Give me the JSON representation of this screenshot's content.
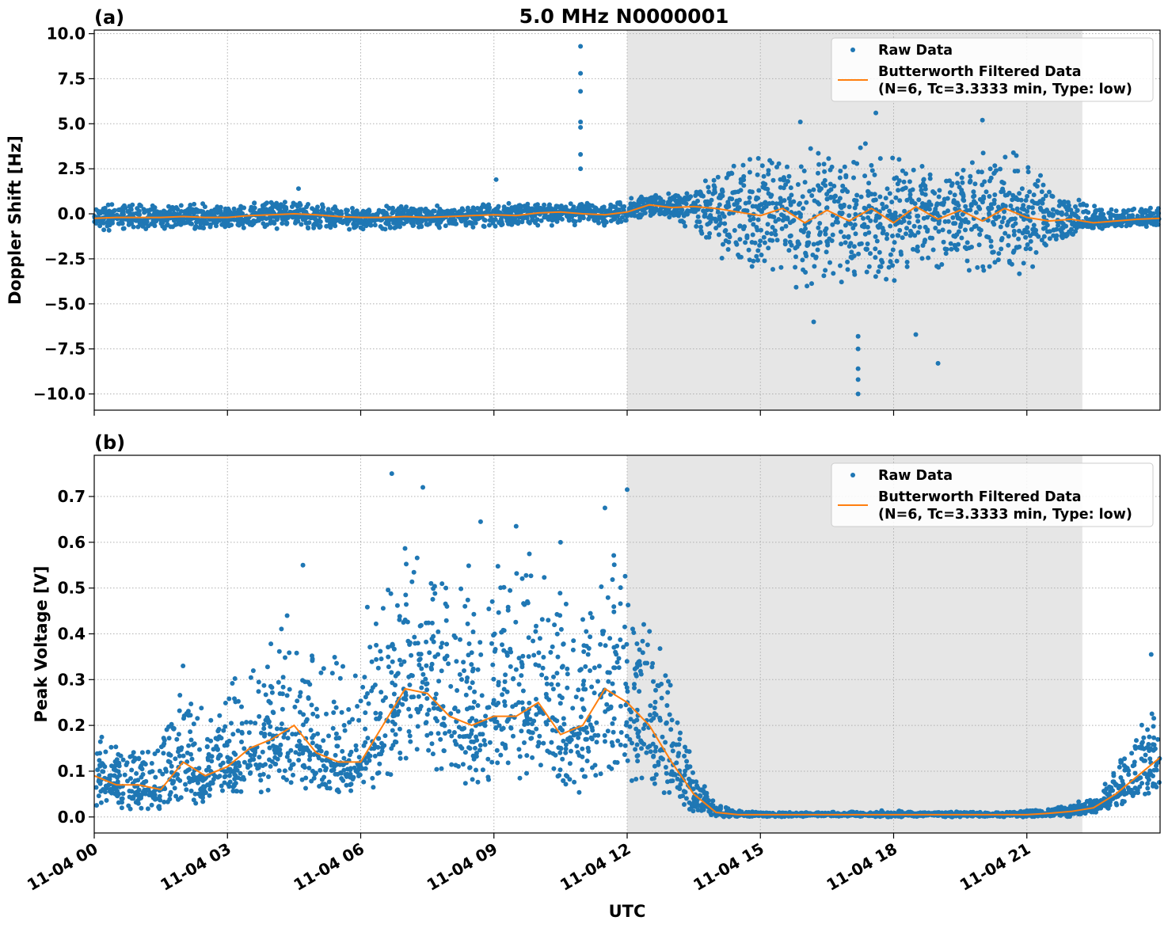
{
  "title": "5.0 MHz N0000001",
  "chart_data": [
    {
      "type": "scatter",
      "panel_label": "(a)",
      "ylabel": "Doppler Shift [Hz]",
      "xlabel": "",
      "xlim": [
        0,
        24
      ],
      "ylim": [
        -10.9,
        10.2
      ],
      "yticks": [
        "10.0",
        "7.5",
        "5.0",
        "2.5",
        "0.0",
        "−2.5",
        "−5.0",
        "−7.5",
        "−10.0"
      ],
      "ytick_values": [
        10,
        7.5,
        5,
        2.5,
        0,
        -2.5,
        -5,
        -7.5,
        -10
      ],
      "grid": true,
      "legend": {
        "placement": "top-right",
        "raw": "Raw Data",
        "filtered_line1": "Butterworth Filtered Data",
        "filtered_line2": "(N=6, Tc=3.3333 min, Type: low)"
      },
      "shaded_region_hours": [
        12,
        22.25
      ],
      "x_hours_step": 0.5,
      "filtered": [
        -0.25,
        -0.2,
        -0.2,
        -0.2,
        -0.15,
        -0.2,
        -0.2,
        -0.1,
        -0.05,
        0.0,
        -0.05,
        -0.15,
        -0.2,
        -0.2,
        -0.15,
        -0.2,
        -0.15,
        -0.1,
        -0.05,
        -0.1,
        0.05,
        0.1,
        0.0,
        -0.05,
        0.1,
        0.5,
        0.35,
        0.4,
        0.3,
        0.1,
        -0.1,
        0.3,
        -0.5,
        0.2,
        -0.4,
        0.3,
        -0.5,
        0.4,
        -0.3,
        0.2,
        -0.4,
        0.3,
        -0.2,
        -0.4,
        -0.3,
        -0.5,
        -0.4,
        -0.3,
        -0.25
      ],
      "raw_min": [
        -1.2,
        -0.9,
        -0.9,
        -0.9,
        -0.9,
        -0.9,
        -0.8,
        -0.8,
        -0.9,
        -0.8,
        -0.9,
        -0.9,
        -0.9,
        -0.9,
        -0.8,
        -0.9,
        -0.9,
        -0.8,
        -0.8,
        -0.8,
        -0.7,
        -0.7,
        -0.8,
        -0.7,
        -0.4,
        -0.2,
        -0.5,
        -1.0,
        -2.5,
        -3.5,
        -4.0,
        -4.2,
        -4.3,
        -4.5,
        -4.5,
        -4.3,
        -4.0,
        -3.5,
        -3.2,
        -3.0,
        -4.0,
        -4.0,
        -3.5,
        -2.5,
        -1.2,
        -0.9,
        -0.8,
        -0.8,
        -0.8
      ],
      "raw_max": [
        0.5,
        0.6,
        0.6,
        0.6,
        0.7,
        0.6,
        0.6,
        0.8,
        0.9,
        0.9,
        0.6,
        0.5,
        0.5,
        0.5,
        0.5,
        0.5,
        0.5,
        0.5,
        0.6,
        0.6,
        0.6,
        0.7,
        0.7,
        0.6,
        0.9,
        1.1,
        1.2,
        1.5,
        2.5,
        3.0,
        3.5,
        3.8,
        4.0,
        4.0,
        4.0,
        4.0,
        3.8,
        3.5,
        3.0,
        2.5,
        3.5,
        3.8,
        3.2,
        2.0,
        1.0,
        0.5,
        0.4,
        0.4,
        0.4
      ],
      "outliers": [
        [
          10.95,
          9.3
        ],
        [
          10.95,
          7.8
        ],
        [
          10.95,
          6.8
        ],
        [
          10.95,
          5.1
        ],
        [
          10.95,
          4.8
        ],
        [
          10.95,
          3.3
        ],
        [
          10.95,
          2.5
        ],
        [
          9.05,
          1.9
        ],
        [
          4.6,
          1.4
        ],
        [
          17.2,
          -10.0
        ],
        [
          17.2,
          -9.2
        ],
        [
          17.2,
          -8.6
        ],
        [
          17.2,
          -7.5
        ],
        [
          17.2,
          -6.8
        ],
        [
          19.0,
          -8.3
        ],
        [
          18.5,
          -6.7
        ],
        [
          15.9,
          5.1
        ],
        [
          17.6,
          5.6
        ],
        [
          20.0,
          5.2
        ],
        [
          16.2,
          -6.0
        ]
      ]
    },
    {
      "type": "scatter",
      "panel_label": "(b)",
      "ylabel": "Peak Voltage [V]",
      "xlabel": "UTC",
      "xlim": [
        0,
        24
      ],
      "ylim": [
        -0.035,
        0.79
      ],
      "yticks": [
        "0.7",
        "0.6",
        "0.5",
        "0.4",
        "0.3",
        "0.2",
        "0.1",
        "0.0"
      ],
      "ytick_values": [
        0.7,
        0.6,
        0.5,
        0.4,
        0.3,
        0.2,
        0.1,
        0.0
      ],
      "xticks": [
        "11-04 00",
        "11-04 03",
        "11-04 06",
        "11-04 09",
        "11-04 12",
        "11-04 15",
        "11-04 18",
        "11-04 21"
      ],
      "xtick_hours": [
        0,
        3,
        6,
        9,
        12,
        15,
        18,
        21
      ],
      "grid": true,
      "legend": {
        "placement": "top-right",
        "raw": "Raw Data",
        "filtered_line1": "Butterworth Filtered Data",
        "filtered_line2": "(N=6, Tc=3.3333 min, Type: low)"
      },
      "shaded_region_hours": [
        12,
        22.25
      ],
      "x_hours_step": 0.5,
      "filtered": [
        0.09,
        0.07,
        0.07,
        0.06,
        0.12,
        0.09,
        0.11,
        0.15,
        0.17,
        0.2,
        0.14,
        0.12,
        0.12,
        0.2,
        0.28,
        0.27,
        0.22,
        0.2,
        0.22,
        0.22,
        0.25,
        0.18,
        0.2,
        0.28,
        0.25,
        0.2,
        0.12,
        0.05,
        0.01,
        0.005,
        0.005,
        0.005,
        0.005,
        0.005,
        0.005,
        0.005,
        0.005,
        0.005,
        0.005,
        0.005,
        0.005,
        0.005,
        0.005,
        0.008,
        0.012,
        0.02,
        0.05,
        0.09,
        0.13
      ],
      "raw_min": [
        0.02,
        0.01,
        0.01,
        0.01,
        0.02,
        0.02,
        0.03,
        0.04,
        0.04,
        0.05,
        0.04,
        0.04,
        0.04,
        0.05,
        0.08,
        0.07,
        0.07,
        0.06,
        0.07,
        0.06,
        0.07,
        0.06,
        0.05,
        0.06,
        0.05,
        0.05,
        0.02,
        0.005,
        0.0,
        0.0,
        0.0,
        0.0,
        0.0,
        0.0,
        0.0,
        0.0,
        0.0,
        0.0,
        0.0,
        0.0,
        0.0,
        0.0,
        0.0,
        0.0,
        0.0,
        0.005,
        0.02,
        0.03,
        0.05
      ],
      "raw_max": [
        0.2,
        0.17,
        0.16,
        0.18,
        0.3,
        0.25,
        0.3,
        0.4,
        0.45,
        0.5,
        0.4,
        0.38,
        0.4,
        0.6,
        0.65,
        0.6,
        0.55,
        0.6,
        0.55,
        0.6,
        0.6,
        0.5,
        0.5,
        0.65,
        0.6,
        0.45,
        0.3,
        0.12,
        0.03,
        0.015,
        0.012,
        0.012,
        0.012,
        0.012,
        0.012,
        0.015,
        0.015,
        0.012,
        0.012,
        0.012,
        0.012,
        0.012,
        0.015,
        0.02,
        0.03,
        0.05,
        0.12,
        0.22,
        0.35
      ],
      "outliers": [
        [
          6.7,
          0.75
        ],
        [
          7.4,
          0.72
        ],
        [
          12.0,
          0.715
        ],
        [
          11.5,
          0.675
        ],
        [
          9.5,
          0.635
        ],
        [
          8.7,
          0.645
        ],
        [
          10.5,
          0.6
        ],
        [
          4.7,
          0.55
        ],
        [
          2.0,
          0.33
        ],
        [
          23.8,
          0.355
        ]
      ]
    }
  ],
  "colors": {
    "raw": "#1f77b4",
    "filtered": "#ff7f0e",
    "shade": "#e6e6e6",
    "grid": "#b0b0b0"
  }
}
